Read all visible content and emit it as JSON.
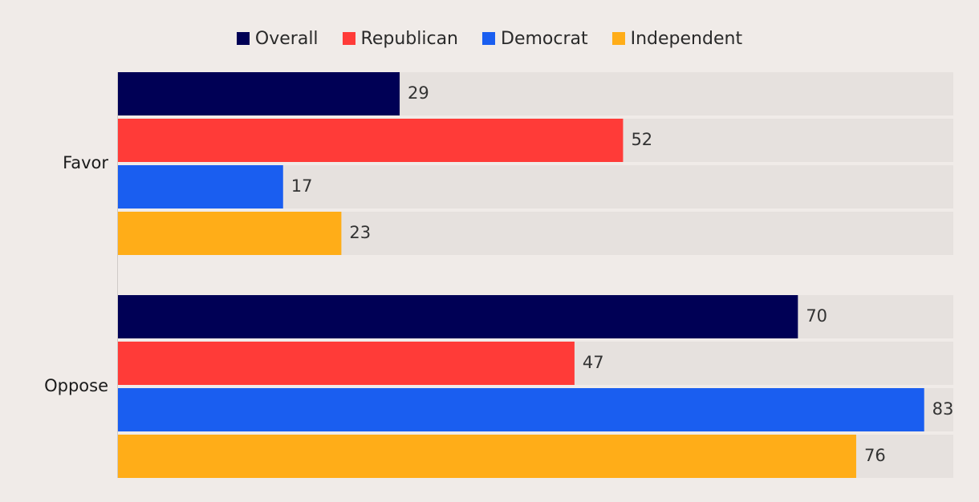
{
  "chart_data": {
    "type": "bar",
    "orientation": "horizontal",
    "categories": [
      "Favor",
      "Oppose"
    ],
    "series": [
      {
        "name": "Overall",
        "color": "#000055",
        "values": [
          29,
          70
        ]
      },
      {
        "name": "Republican",
        "color": "#ff3b38",
        "values": [
          52,
          47
        ]
      },
      {
        "name": "Democrat",
        "color": "#1a5ef0",
        "values": [
          17,
          83
        ]
      },
      {
        "name": "Independent",
        "color": "#ffad18",
        "values": [
          23,
          76
        ]
      }
    ],
    "xlim": [
      0,
      86
    ],
    "track_color": "#e6e1de",
    "legend_position": "top-center",
    "grid": false
  }
}
